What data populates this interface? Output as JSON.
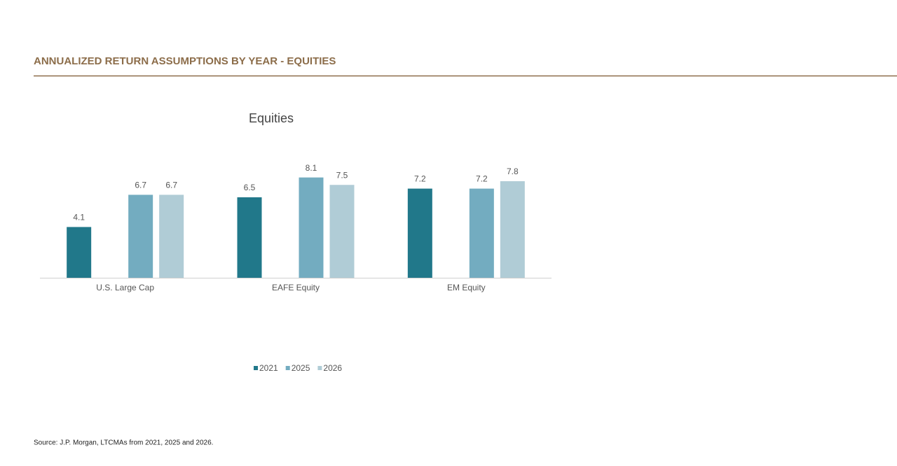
{
  "header": {
    "title": "ANNUALIZED RETURN ASSUMPTIONS BY YEAR - EQUITIES"
  },
  "chart_data": {
    "type": "bar",
    "title": "Equities",
    "categories": [
      "U.S. Large Cap",
      "EAFE Equity",
      "EM Equity"
    ],
    "series": [
      {
        "name": "2021",
        "color": "#21788a",
        "values": [
          4.1,
          6.5,
          7.2
        ]
      },
      {
        "name": "2025",
        "color": "#73acc0",
        "values": [
          6.7,
          8.1,
          7.2
        ]
      },
      {
        "name": "2026",
        "color": "#b0ccd6",
        "values": [
          6.7,
          7.5,
          7.8
        ]
      }
    ],
    "legend": "bottom"
  },
  "footer": {
    "source": "Source: J.P. Morgan, LTCMAs from 2021, 2025 and 2026."
  }
}
